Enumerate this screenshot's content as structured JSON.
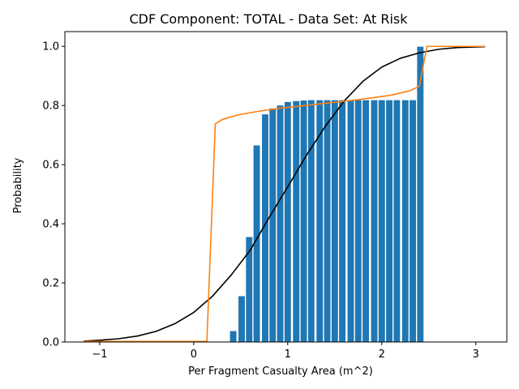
{
  "chart_data": {
    "type": "bar",
    "title": "CDF Component: TOTAL - Data Set: At Risk",
    "xlabel": "Per Fragment Casualty Area (m^2)",
    "ylabel": "Probability",
    "xlim": [
      -1.37,
      3.33
    ],
    "ylim": [
      0.0,
      1.05
    ],
    "xticks": [
      -1,
      0,
      1,
      2,
      3
    ],
    "xtick_labels": [
      "−1",
      "0",
      "1",
      "2",
      "3"
    ],
    "yticks": [
      0.0,
      0.2,
      0.4,
      0.6,
      0.8,
      1.0
    ],
    "ytick_labels": [
      "0.0",
      "0.2",
      "0.4",
      "0.6",
      "0.8",
      "1.0"
    ],
    "grid": false,
    "colors": {
      "bars": "#1f77b4",
      "normal_cdf": "#000000",
      "fitted_cdf": "#ff7f0e"
    },
    "bars": {
      "bar_width": 0.068,
      "x": [
        0.42,
        0.51,
        0.59,
        0.67,
        0.76,
        0.84,
        0.92,
        1.0,
        1.09,
        1.17,
        1.25,
        1.34,
        1.42,
        1.5,
        1.58,
        1.67,
        1.75,
        1.83,
        1.92,
        2.0,
        2.08,
        2.16,
        2.25,
        2.33,
        2.41
      ],
      "values": [
        0.037,
        0.155,
        0.355,
        0.665,
        0.77,
        0.79,
        0.8,
        0.812,
        0.815,
        0.817,
        0.818,
        0.818,
        0.818,
        0.818,
        0.818,
        0.818,
        0.818,
        0.818,
        0.818,
        0.818,
        0.818,
        0.818,
        0.818,
        0.818,
        0.999
      ]
    },
    "series": [
      {
        "style": "line",
        "color": "#000000",
        "x": [
          -1.17,
          -1.0,
          -0.8,
          -0.6,
          -0.4,
          -0.2,
          0.0,
          0.2,
          0.4,
          0.6,
          0.8,
          1.0,
          1.2,
          1.4,
          1.6,
          1.8,
          2.0,
          2.2,
          2.4,
          2.6,
          2.8,
          3.0,
          3.1
        ],
        "values": [
          0.003,
          0.006,
          0.011,
          0.02,
          0.036,
          0.062,
          0.1,
          0.155,
          0.227,
          0.31,
          0.42,
          0.525,
          0.632,
          0.73,
          0.815,
          0.882,
          0.93,
          0.96,
          0.978,
          0.99,
          0.996,
          0.998,
          0.999
        ]
      },
      {
        "style": "line",
        "color": "#ff7f0e",
        "x": [
          -1.17,
          0.0,
          0.14,
          0.23,
          0.3,
          0.4,
          0.5,
          0.7,
          0.9,
          1.1,
          1.3,
          1.5,
          1.7,
          1.9,
          2.1,
          2.3,
          2.4,
          2.48,
          2.55,
          3.1
        ],
        "values": [
          0.002,
          0.002,
          0.002,
          0.738,
          0.752,
          0.762,
          0.77,
          0.781,
          0.79,
          0.797,
          0.804,
          0.811,
          0.818,
          0.826,
          0.835,
          0.85,
          0.865,
          1.0,
          1.0,
          1.0
        ]
      }
    ]
  }
}
